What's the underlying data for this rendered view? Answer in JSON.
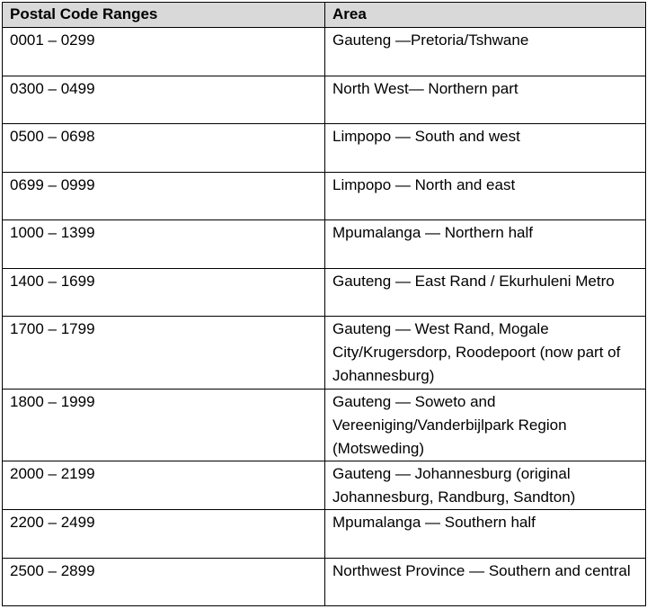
{
  "table": {
    "header": [
      "Postal Code Ranges",
      "Area"
    ],
    "rows": [
      [
        "0001 – 0299",
        "Gauteng —Pretoria/Tshwane"
      ],
      [
        "0300 – 0499",
        "North West— Northern part"
      ],
      [
        "0500 – 0698",
        "Limpopo — South and west"
      ],
      [
        "0699 – 0999",
        "Limpopo — North and east"
      ],
      [
        "1000 – 1399",
        "Mpumalanga — Northern half"
      ],
      [
        "1400 – 1699",
        "Gauteng — East Rand / Ekurhuleni Metro"
      ],
      [
        "1700 – 1799",
        "Gauteng — West Rand, Mogale City/Krugersdorp, Roodepoort (now part of Johannesburg)"
      ],
      [
        "1800 – 1999",
        "Gauteng — Soweto and Vereeniging/Vanderbijlpark Region (Motsweding)"
      ],
      [
        "2000 – 2199",
        "Gauteng — Johannesburg (original Johannesburg, Randburg, Sandton)"
      ],
      [
        "2200 – 2499",
        "Mpumalanga — Southern half"
      ],
      [
        "2500 – 2899",
        "Northwest Province — Southern and central"
      ]
    ]
  }
}
